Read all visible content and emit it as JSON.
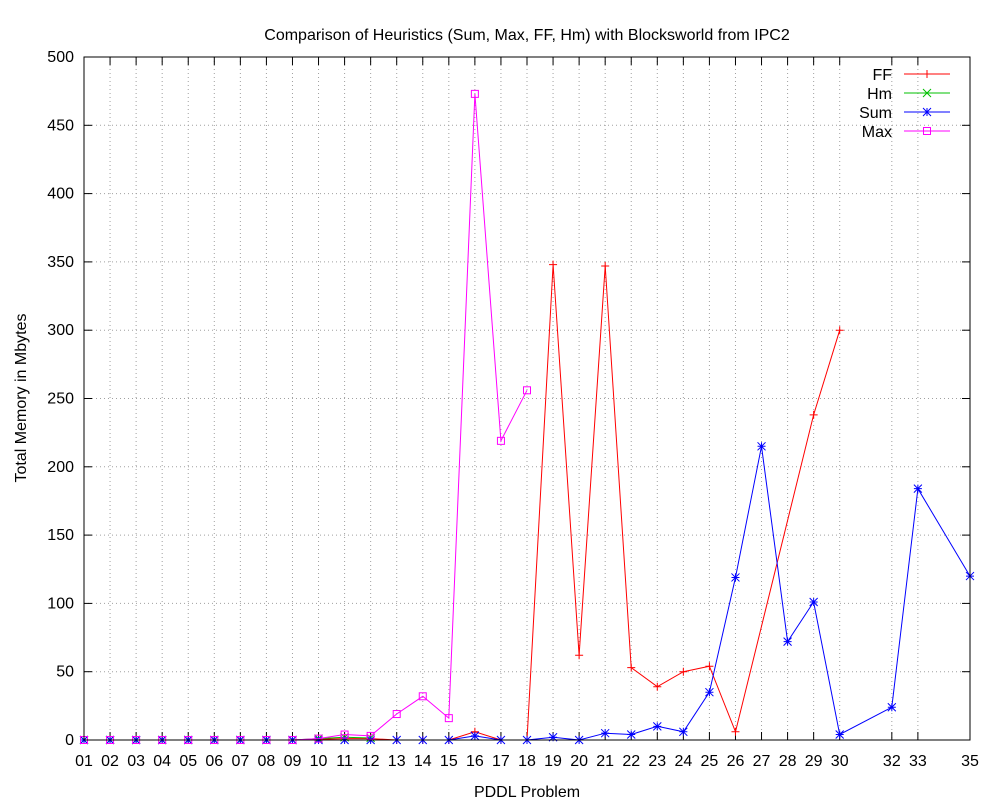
{
  "chart_data": {
    "type": "line",
    "title": "Comparison of Heuristics (Sum, Max, FF, Hm) with Blocksworld from IPC2",
    "xlabel": "PDDL Problem",
    "ylabel": "Total Memory in Mbytes",
    "ylim": [
      0,
      500
    ],
    "xlim": [
      1,
      35
    ],
    "yticks": [
      0,
      50,
      100,
      150,
      200,
      250,
      300,
      350,
      400,
      450,
      500
    ],
    "xticks": [
      {
        "x": 1,
        "label": "01"
      },
      {
        "x": 2,
        "label": "02"
      },
      {
        "x": 3,
        "label": "03"
      },
      {
        "x": 4,
        "label": "04"
      },
      {
        "x": 5,
        "label": "05"
      },
      {
        "x": 6,
        "label": "06"
      },
      {
        "x": 7,
        "label": "07"
      },
      {
        "x": 8,
        "label": "08"
      },
      {
        "x": 9,
        "label": "09"
      },
      {
        "x": 10,
        "label": "10"
      },
      {
        "x": 11,
        "label": "11"
      },
      {
        "x": 12,
        "label": "12"
      },
      {
        "x": 13,
        "label": "13"
      },
      {
        "x": 14,
        "label": "14"
      },
      {
        "x": 15,
        "label": "15"
      },
      {
        "x": 16,
        "label": "16"
      },
      {
        "x": 17,
        "label": "17"
      },
      {
        "x": 18,
        "label": "18"
      },
      {
        "x": 19,
        "label": "19"
      },
      {
        "x": 20,
        "label": "20"
      },
      {
        "x": 21,
        "label": "21"
      },
      {
        "x": 22,
        "label": "22"
      },
      {
        "x": 23,
        "label": "23"
      },
      {
        "x": 24,
        "label": "24"
      },
      {
        "x": 25,
        "label": "25"
      },
      {
        "x": 26,
        "label": "26"
      },
      {
        "x": 27,
        "label": "27"
      },
      {
        "x": 28,
        "label": "28"
      },
      {
        "x": 29,
        "label": "29"
      },
      {
        "x": 30,
        "label": "30"
      },
      {
        "x": 32,
        "label": "32"
      },
      {
        "x": 33,
        "label": "33"
      },
      {
        "x": 35,
        "label": "35"
      }
    ],
    "grid": true,
    "legend_position": "top-right",
    "series": [
      {
        "name": "FF",
        "color": "#ff0000",
        "marker": "plus",
        "x": [
          1,
          2,
          3,
          4,
          5,
          6,
          7,
          8,
          9,
          10,
          11,
          12,
          13,
          14,
          15,
          16,
          17,
          18,
          19,
          20,
          21,
          22,
          23,
          24,
          25,
          26,
          29,
          30
        ],
        "y": [
          0,
          0,
          0,
          0,
          0,
          0,
          0,
          0,
          0,
          0.5,
          1,
          1,
          0,
          0,
          0,
          6,
          0,
          0,
          348,
          62,
          347,
          53,
          39,
          50,
          54,
          6,
          238,
          300
        ]
      },
      {
        "name": "Hm",
        "color": "#00c000",
        "marker": "cross",
        "x": [
          1,
          2,
          3,
          4,
          5,
          6,
          7,
          8,
          9,
          10,
          11,
          12
        ],
        "y": [
          0,
          0,
          0,
          0,
          0,
          0,
          0,
          0,
          0,
          1,
          2,
          1.5
        ]
      },
      {
        "name": "Sum",
        "color": "#0000ff",
        "marker": "star",
        "x": [
          1,
          2,
          3,
          4,
          5,
          6,
          7,
          8,
          9,
          10,
          11,
          12,
          13,
          14,
          15,
          16,
          17,
          18,
          19,
          20,
          21,
          22,
          23,
          24,
          25,
          26,
          27,
          28,
          29,
          30,
          32,
          33,
          35
        ],
        "y": [
          0,
          0,
          0,
          0,
          0,
          0,
          0,
          0,
          0,
          0,
          0,
          0,
          0,
          0,
          0,
          3,
          0,
          0,
          2,
          0,
          5,
          4,
          10,
          6,
          35,
          119,
          215,
          72,
          101,
          4,
          24,
          184,
          120
        ]
      },
      {
        "name": "Max",
        "color": "#ff00ff",
        "marker": "square",
        "x": [
          1,
          2,
          3,
          4,
          5,
          6,
          7,
          8,
          9,
          10,
          11,
          12,
          13,
          14,
          15,
          16,
          17,
          18
        ],
        "y": [
          0,
          0,
          0,
          0,
          0,
          0,
          0,
          0,
          0,
          1,
          4,
          3,
          19,
          32,
          16,
          473,
          219,
          256
        ]
      }
    ]
  }
}
